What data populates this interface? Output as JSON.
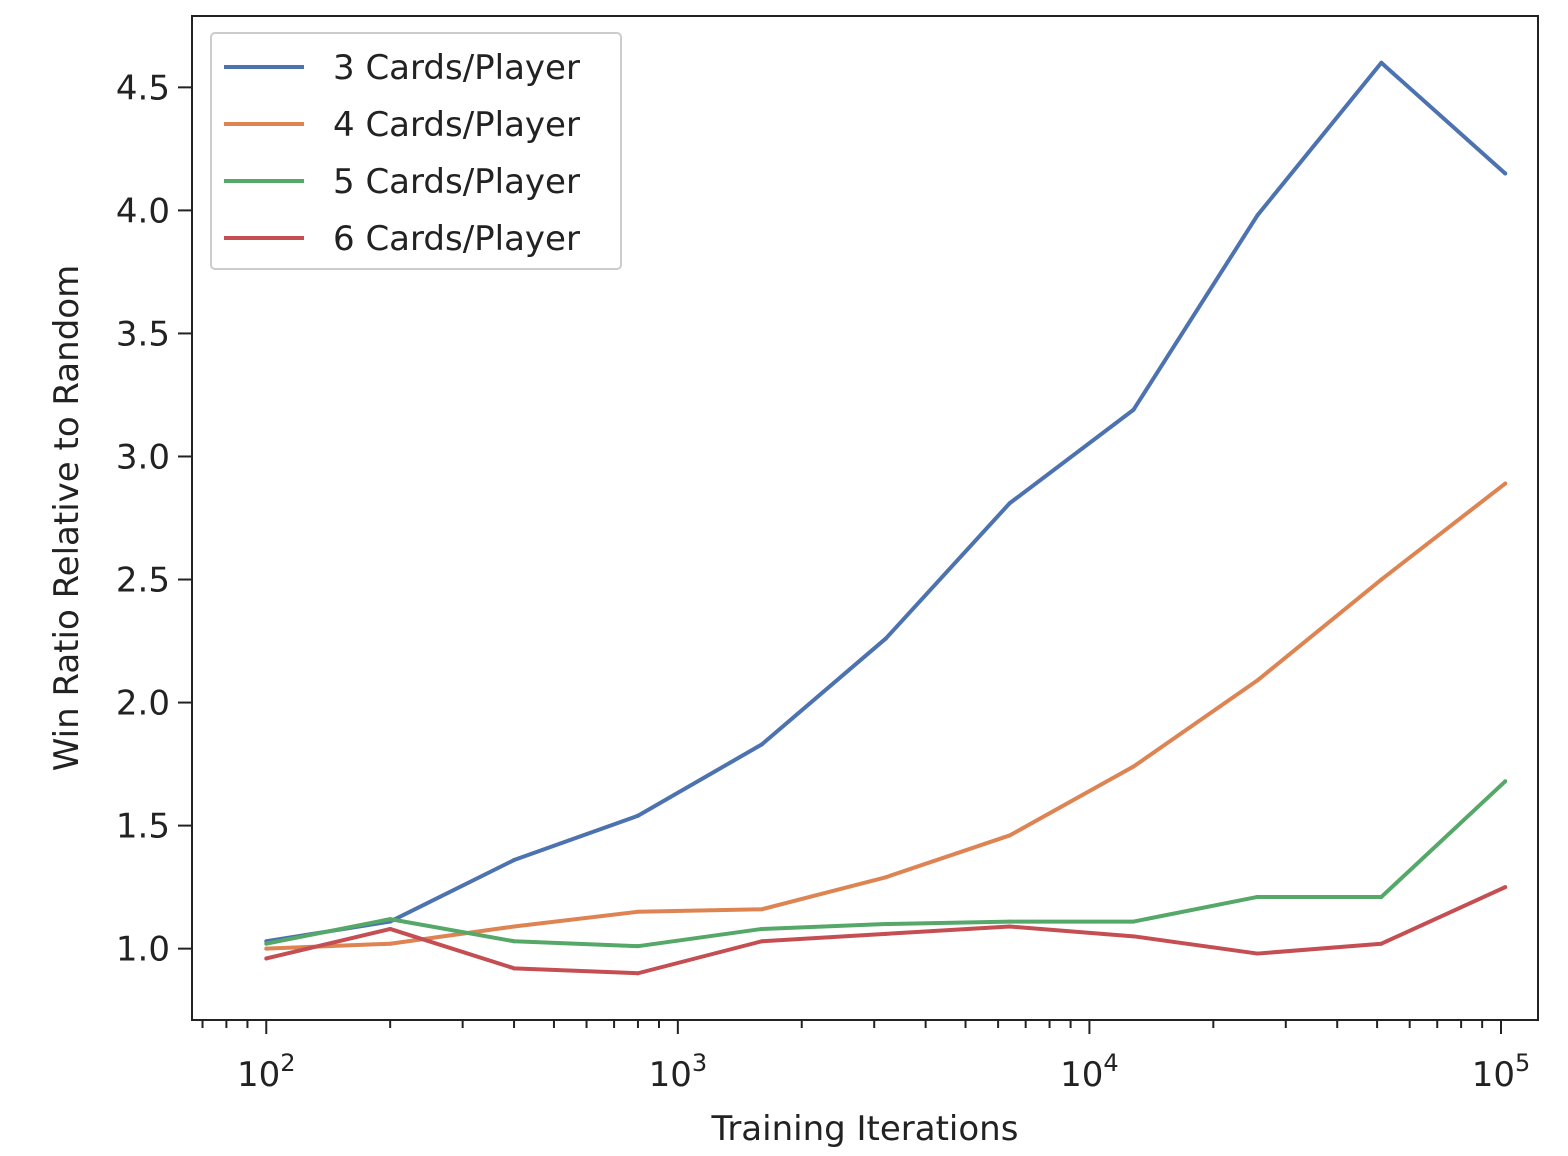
{
  "chart_data": {
    "type": "line",
    "title": "",
    "xlabel": "Training Iterations",
    "ylabel": "Win Ratio Relative to Random",
    "xscale": "log",
    "xlim": [
      66,
      123000
    ],
    "ylim": [
      0.71,
      4.79
    ],
    "x": [
      100,
      200,
      400,
      800,
      1600,
      3200,
      6400,
      12800,
      25600,
      51200,
      102400
    ],
    "x_ticks": [
      {
        "value": 100,
        "base": "10",
        "exp": "2"
      },
      {
        "value": 1000,
        "base": "10",
        "exp": "3"
      },
      {
        "value": 10000,
        "base": "10",
        "exp": "4"
      },
      {
        "value": 100000,
        "base": "10",
        "exp": "5"
      }
    ],
    "y_ticks": [
      {
        "value": 1.0,
        "label": "1.0"
      },
      {
        "value": 1.5,
        "label": "1.5"
      },
      {
        "value": 2.0,
        "label": "2.0"
      },
      {
        "value": 2.5,
        "label": "2.5"
      },
      {
        "value": 3.0,
        "label": "3.0"
      },
      {
        "value": 3.5,
        "label": "3.5"
      },
      {
        "value": 4.0,
        "label": "4.0"
      },
      {
        "value": 4.5,
        "label": "4.5"
      }
    ],
    "grid": false,
    "legend_position": "top-left",
    "series": [
      {
        "name": "3 Cards/Player",
        "color": "#4c72b0",
        "values": [
          1.03,
          1.11,
          1.36,
          1.54,
          1.83,
          2.26,
          2.81,
          3.19,
          3.98,
          4.6,
          4.15
        ]
      },
      {
        "name": "4 Cards/Player",
        "color": "#dd8452",
        "values": [
          1.0,
          1.02,
          1.09,
          1.15,
          1.16,
          1.29,
          1.46,
          1.74,
          2.09,
          2.5,
          2.89
        ]
      },
      {
        "name": "5 Cards/Player",
        "color": "#55a868",
        "values": [
          1.02,
          1.12,
          1.03,
          1.01,
          1.08,
          1.1,
          1.11,
          1.11,
          1.21,
          1.21,
          1.68
        ]
      },
      {
        "name": "6 Cards/Player",
        "color": "#c44e52",
        "values": [
          0.96,
          1.08,
          0.92,
          0.9,
          1.03,
          1.06,
          1.09,
          1.05,
          0.98,
          1.02,
          1.25
        ]
      }
    ]
  }
}
